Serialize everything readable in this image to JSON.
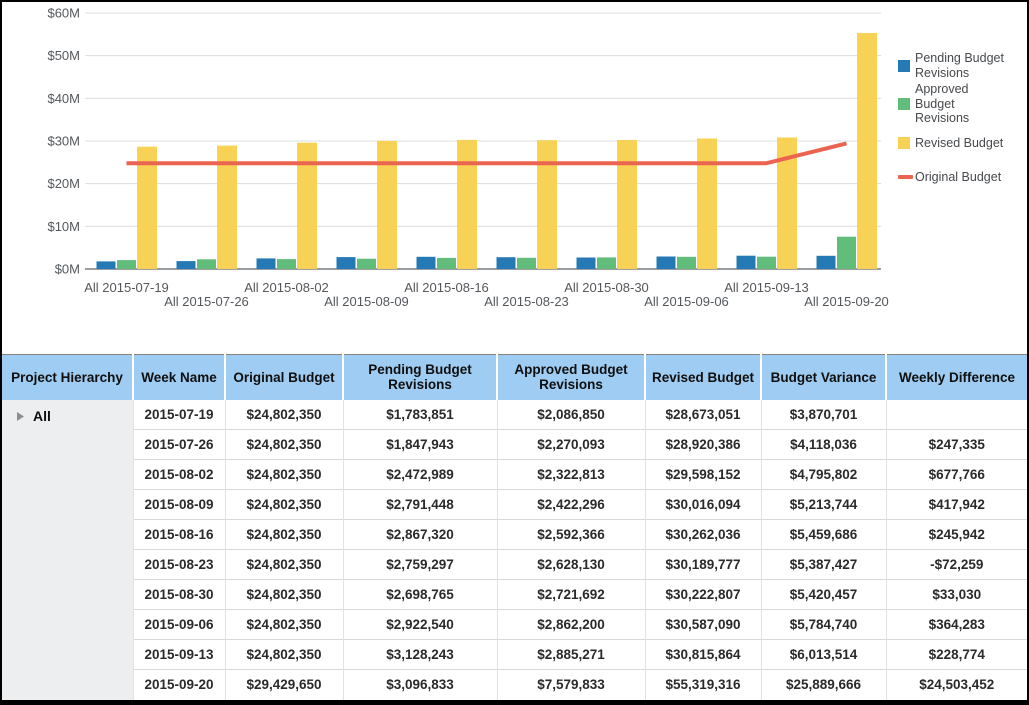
{
  "chart_data": {
    "type": "combo-bar-line",
    "title": "",
    "xlabel": "",
    "ylabel": "",
    "categories": [
      "All 2015-07-19",
      "All 2015-07-26",
      "All 2015-08-02",
      "All 2015-08-09",
      "All 2015-08-16",
      "All 2015-08-23",
      "All 2015-08-30",
      "All 2015-09-06",
      "All 2015-09-13",
      "All 2015-09-20"
    ],
    "series": [
      {
        "name": "Pending Budget Revisions",
        "type": "bar",
        "color": "#2579B5",
        "values": [
          1783851,
          1847943,
          2472989,
          2791448,
          2867320,
          2759297,
          2698765,
          2922540,
          3128243,
          3096833
        ]
      },
      {
        "name": "Approved Budget Revisions",
        "type": "bar",
        "color": "#62BD7B",
        "values": [
          2086850,
          2270093,
          2322813,
          2422296,
          2592366,
          2628130,
          2721692,
          2862200,
          2885271,
          7579833
        ]
      },
      {
        "name": "Revised Budget",
        "type": "bar",
        "color": "#F7D254",
        "values": [
          28673051,
          28920386,
          29598152,
          30016094,
          30262036,
          30189777,
          30222807,
          30587090,
          30815864,
          55319316
        ]
      },
      {
        "name": "Original Budget",
        "type": "line",
        "color": "#EA6450",
        "values": [
          24802350,
          24802350,
          24802350,
          24802350,
          24802350,
          24802350,
          24802350,
          24802350,
          24802350,
          29429650
        ]
      }
    ],
    "ylim": [
      0,
      60000000
    ],
    "ytick_labels": [
      "$0M",
      "$10M",
      "$20M",
      "$30M",
      "$40M",
      "$50M",
      "$60M"
    ],
    "grid": true,
    "legend_position": "right"
  },
  "table": {
    "columns": [
      "Project Hierarchy",
      "Week Name",
      "Original Budget",
      "Pending Budget Revisions",
      "Approved Budget Revisions",
      "Revised Budget",
      "Budget Variance",
      "Weekly Difference"
    ],
    "hierarchy": {
      "label": "All",
      "expander_icon": "triangle-right-icon"
    },
    "rows": [
      [
        "2015-07-19",
        "$24,802,350",
        "$1,783,851",
        "$2,086,850",
        "$28,673,051",
        "$3,870,701",
        ""
      ],
      [
        "2015-07-26",
        "$24,802,350",
        "$1,847,943",
        "$2,270,093",
        "$28,920,386",
        "$4,118,036",
        "$247,335"
      ],
      [
        "2015-08-02",
        "$24,802,350",
        "$2,472,989",
        "$2,322,813",
        "$29,598,152",
        "$4,795,802",
        "$677,766"
      ],
      [
        "2015-08-09",
        "$24,802,350",
        "$2,791,448",
        "$2,422,296",
        "$30,016,094",
        "$5,213,744",
        "$417,942"
      ],
      [
        "2015-08-16",
        "$24,802,350",
        "$2,867,320",
        "$2,592,366",
        "$30,262,036",
        "$5,459,686",
        "$245,942"
      ],
      [
        "2015-08-23",
        "$24,802,350",
        "$2,759,297",
        "$2,628,130",
        "$30,189,777",
        "$5,387,427",
        "-$72,259"
      ],
      [
        "2015-08-30",
        "$24,802,350",
        "$2,698,765",
        "$2,721,692",
        "$30,222,807",
        "$5,420,457",
        "$33,030"
      ],
      [
        "2015-09-06",
        "$24,802,350",
        "$2,922,540",
        "$2,862,200",
        "$30,587,090",
        "$5,784,740",
        "$364,283"
      ],
      [
        "2015-09-13",
        "$24,802,350",
        "$3,128,243",
        "$2,885,271",
        "$30,815,864",
        "$6,013,514",
        "$228,774"
      ],
      [
        "2015-09-20",
        "$29,429,650",
        "$3,096,833",
        "$7,579,833",
        "$55,319,316",
        "$25,889,666",
        "$24,503,452"
      ]
    ],
    "colors": {
      "header_bg": "#9FCCF2",
      "hierarchy_bg": "#EDEEF0",
      "row_divider": "#D9D9D9"
    }
  }
}
